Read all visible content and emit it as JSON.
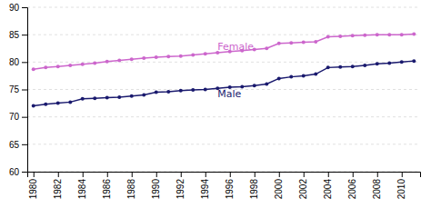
{
  "chart_data": {
    "type": "line",
    "x": [
      1980,
      1981,
      1982,
      1983,
      1984,
      1985,
      1986,
      1987,
      1988,
      1989,
      1990,
      1991,
      1992,
      1993,
      1994,
      1995,
      1996,
      1997,
      1998,
      1999,
      2000,
      2001,
      2002,
      2003,
      2004,
      2005,
      2006,
      2007,
      2008,
      2009,
      2010,
      2011
    ],
    "series": [
      {
        "color": "#cc66cc",
        "marker": "circle",
        "values": [
          78.7,
          79.0,
          79.2,
          79.4,
          79.6,
          79.8,
          80.1,
          80.3,
          80.5,
          80.7,
          80.9,
          81.0,
          81.1,
          81.3,
          81.5,
          81.7,
          81.9,
          82.1,
          82.3,
          82.5,
          83.4,
          83.5,
          83.6,
          83.7,
          84.6,
          84.7,
          84.8,
          84.9,
          85.0,
          85.0,
          85.0,
          85.1
        ]
      },
      {
        "color": "#1a1a6e",
        "marker": "circle",
        "values": [
          72.0,
          72.3,
          72.5,
          72.7,
          73.3,
          73.4,
          73.5,
          73.6,
          73.8,
          74.0,
          74.5,
          74.6,
          74.8,
          74.9,
          75.0,
          75.2,
          75.4,
          75.5,
          75.7,
          76.0,
          77.0,
          77.3,
          77.5,
          77.8,
          79.0,
          79.1,
          79.2,
          79.4,
          79.7,
          79.8,
          80.0,
          80.2
        ]
      }
    ],
    "annotations": [
      {
        "text": "Female",
        "x": 1995,
        "y": 81.8,
        "color": "#cc66cc"
      },
      {
        "text": "Male",
        "x": 1995,
        "y": 75.2,
        "color": "#1a1a6e"
      }
    ],
    "xlim": [
      1979.5,
      2011.5
    ],
    "xticks": [
      1980,
      1982,
      1984,
      1986,
      1988,
      1990,
      1992,
      1994,
      1996,
      1998,
      2000,
      2002,
      2004,
      2006,
      2008,
      2010
    ],
    "ylim": [
      60,
      90
    ],
    "yticks": [
      60,
      65,
      70,
      75,
      80,
      85,
      90
    ],
    "grid": true
  }
}
